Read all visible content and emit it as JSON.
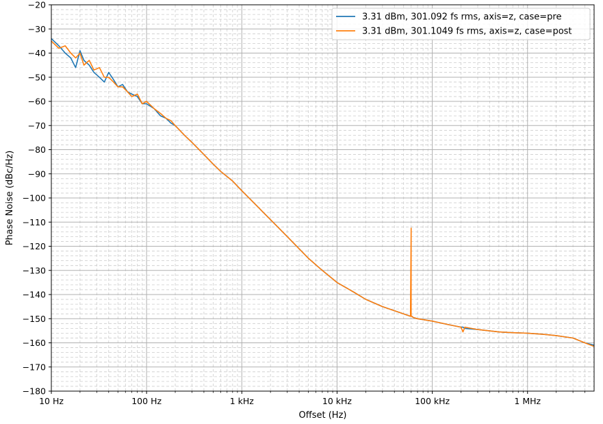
{
  "chart_data": {
    "type": "line",
    "title": "",
    "xlabel": "Offset (Hz)",
    "ylabel": "Phase Noise (dBc/Hz)",
    "xscale": "log",
    "xlim": [
      10,
      5000000
    ],
    "ylim": [
      -180,
      -20
    ],
    "grid": "major and minor",
    "legend_position": "top-right",
    "x_ticks": [
      10,
      100,
      1000,
      10000,
      100000,
      1000000
    ],
    "x_tick_labels": [
      "10 Hz",
      "100 Hz",
      "1 kHz",
      "10 kHz",
      "100 kHz",
      "1 MHz"
    ],
    "y_ticks": [
      -20,
      -30,
      -40,
      -50,
      -60,
      -70,
      -80,
      -90,
      -100,
      -110,
      -120,
      -130,
      -140,
      -150,
      -160,
      -170,
      -180
    ],
    "y_tick_labels": [
      "−20",
      "−30",
      "−40",
      "−50",
      "−60",
      "−70",
      "−80",
      "−90",
      "−100",
      "−110",
      "−120",
      "−130",
      "−140",
      "−150",
      "−160",
      "−170",
      "−180"
    ],
    "series": [
      {
        "name": "3.31 dBm, 301.092 fs rms, axis=z, case=pre",
        "color": "#1f77b4",
        "x": [
          10,
          12,
          14,
          16,
          18,
          20,
          22,
          25,
          28,
          32,
          36,
          40,
          45,
          50,
          56,
          63,
          70,
          80,
          90,
          100,
          120,
          140,
          160,
          180,
          200,
          250,
          300,
          400,
          500,
          600,
          800,
          1000,
          1500,
          2000,
          3000,
          5000,
          7000,
          10000,
          15000,
          20000,
          30000,
          50000,
          59000,
          60000,
          60000,
          61000,
          63000,
          70000,
          100000,
          150000,
          200000,
          210000,
          220000,
          300000,
          500000,
          700000,
          1000000,
          1500000,
          2000000,
          3000000,
          4000000,
          5000000
        ],
        "y": [
          -34,
          -37,
          -40,
          -42,
          -46,
          -39,
          -43,
          -45,
          -48,
          -50,
          -52,
          -48,
          -51,
          -54,
          -53,
          -56,
          -57,
          -58,
          -61,
          -61,
          -63,
          -66,
          -67,
          -69,
          -70,
          -74,
          -77,
          -82,
          -86,
          -89,
          -93,
          -97,
          -104,
          -109,
          -116,
          -125,
          -130,
          -135,
          -139,
          -142,
          -145,
          -148,
          -149,
          -149,
          -149,
          -149,
          -149.5,
          -150,
          -151,
          -152.5,
          -153.5,
          -153.5,
          -154,
          -154.5,
          -155.5,
          -155.8,
          -156,
          -156.5,
          -157,
          -158,
          -160,
          -161
        ]
      },
      {
        "name": "3.31 dBm, 301.1049 fs rms, axis=z, case=post",
        "color": "#ff7f0e",
        "x": [
          10,
          12,
          14,
          16,
          18,
          20,
          22,
          25,
          28,
          32,
          36,
          40,
          45,
          50,
          56,
          63,
          70,
          80,
          90,
          100,
          120,
          140,
          160,
          180,
          200,
          250,
          300,
          400,
          500,
          600,
          800,
          1000,
          1500,
          2000,
          3000,
          5000,
          7000,
          10000,
          15000,
          20000,
          30000,
          50000,
          59000,
          60000,
          60000,
          61000,
          63000,
          70000,
          100000,
          150000,
          200000,
          210000,
          220000,
          300000,
          500000,
          700000,
          1000000,
          1500000,
          2000000,
          3000000,
          4000000,
          5000000
        ],
        "y": [
          -35,
          -38,
          -37,
          -40,
          -42,
          -40,
          -45,
          -43,
          -47,
          -46,
          -50,
          -50,
          -52,
          -54,
          -54,
          -56,
          -58,
          -57,
          -61,
          -60,
          -63,
          -65,
          -67,
          -68,
          -70,
          -74,
          -77,
          -82,
          -86,
          -89,
          -93,
          -97,
          -104,
          -109,
          -116,
          -125,
          -130,
          -135,
          -139,
          -142,
          -145,
          -148,
          -149,
          -112.5,
          -149,
          -149,
          -149.5,
          -150,
          -151,
          -152.5,
          -153.5,
          -155.5,
          -153.5,
          -154.5,
          -155.5,
          -155.8,
          -156,
          -156.5,
          -157,
          -158,
          -160,
          -161.5
        ]
      }
    ]
  }
}
